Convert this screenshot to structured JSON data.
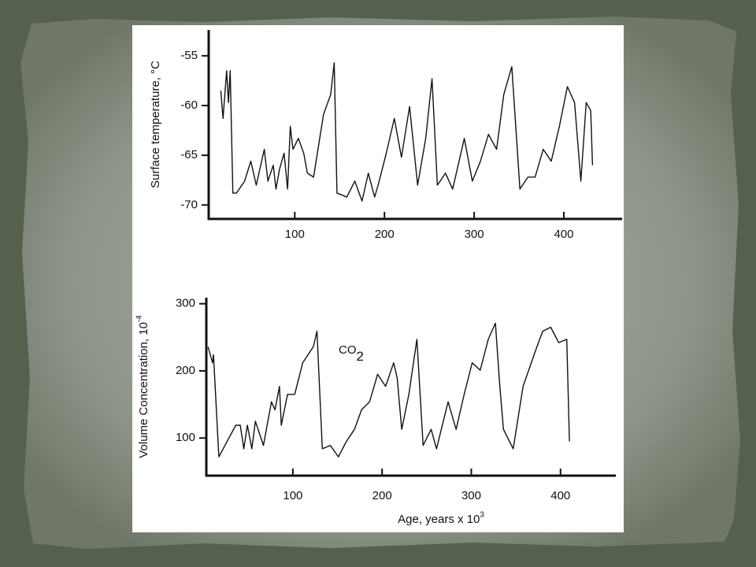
{
  "chart_data": [
    {
      "type": "line",
      "y_label": "Surface temperature, °C",
      "x": [
        17.5,
        20,
        24,
        26,
        28,
        31,
        35,
        44,
        51,
        57,
        66,
        70,
        76,
        79,
        83,
        88,
        92,
        95,
        98,
        104,
        110,
        114,
        121,
        132,
        140,
        144,
        147,
        158,
        167,
        175,
        182,
        189,
        193,
        202,
        211,
        219,
        228,
        237,
        246,
        253,
        259,
        268,
        276,
        289,
        298,
        307,
        316,
        325,
        333,
        342,
        351,
        360,
        368,
        377,
        386,
        395,
        404,
        412,
        419,
        425,
        430,
        432
      ],
      "values": [
        -58.5,
        -61.3,
        -56.5,
        -59.7,
        -56.5,
        -68.8,
        -68.8,
        -67.6,
        -65.6,
        -68.0,
        -64.4,
        -67.6,
        -66.0,
        -68.4,
        -66.4,
        -64.8,
        -68.4,
        -62.1,
        -64.4,
        -63.3,
        -64.8,
        -66.8,
        -67.2,
        -60.9,
        -58.9,
        -55.7,
        -68.8,
        -69.2,
        -67.6,
        -69.6,
        -66.8,
        -69.2,
        -68.0,
        -64.8,
        -61.3,
        -65.2,
        -60.1,
        -68.0,
        -63.3,
        -57.3,
        -68.0,
        -66.8,
        -68.4,
        -63.3,
        -67.6,
        -65.6,
        -62.9,
        -64.4,
        -58.9,
        -56.1,
        -68.4,
        -67.2,
        -67.2,
        -64.4,
        -65.6,
        -62.1,
        -58.1,
        -59.7,
        -67.6,
        -59.7,
        -60.5,
        -66.0
      ],
      "color": "#111111",
      "xlim": [
        4,
        465
      ],
      "xticks": [
        100,
        200,
        300,
        400
      ],
      "ylim": [
        -71.4,
        -52.4
      ],
      "yticks": [
        -55,
        -60,
        -65,
        -70
      ]
    },
    {
      "type": "line",
      "y_label": {
        "text": "Volume Concentration, 10",
        "superscript": "-4"
      },
      "x_label": {
        "text": "Age, years x 10",
        "superscript": "3"
      },
      "annotation": {
        "text": "CO",
        "subscript": "2"
      },
      "x": [
        5,
        10,
        11,
        17,
        36,
        41,
        45,
        49,
        54,
        58,
        67,
        76,
        80,
        85,
        87,
        94,
        102,
        111,
        123,
        127,
        133,
        142,
        151,
        160,
        169,
        177,
        186,
        195,
        204,
        213,
        217,
        222,
        230,
        239,
        246,
        255,
        261,
        274,
        283,
        292,
        301,
        310,
        319,
        327,
        332,
        336,
        347,
        358,
        372,
        380,
        389,
        398,
        407,
        410
      ],
      "values": [
        235.7,
        212,
        224,
        72,
        119,
        119,
        84,
        119,
        84,
        125,
        89,
        154,
        142,
        177,
        119,
        165,
        165,
        212,
        236,
        259,
        84,
        89,
        72,
        95,
        113,
        142,
        154,
        195,
        177,
        212,
        189,
        113,
        165,
        247,
        89,
        113,
        84,
        154,
        113,
        165,
        212,
        201,
        247,
        271,
        177,
        113,
        84,
        177,
        230,
        259,
        265,
        242,
        247,
        95
      ],
      "color": "#111111",
      "xlim": [
        3,
        462
      ],
      "xticks": [
        100,
        200,
        300,
        400
      ],
      "ylim": [
        44,
        309
      ],
      "yticks": [
        300,
        200,
        100
      ]
    }
  ]
}
